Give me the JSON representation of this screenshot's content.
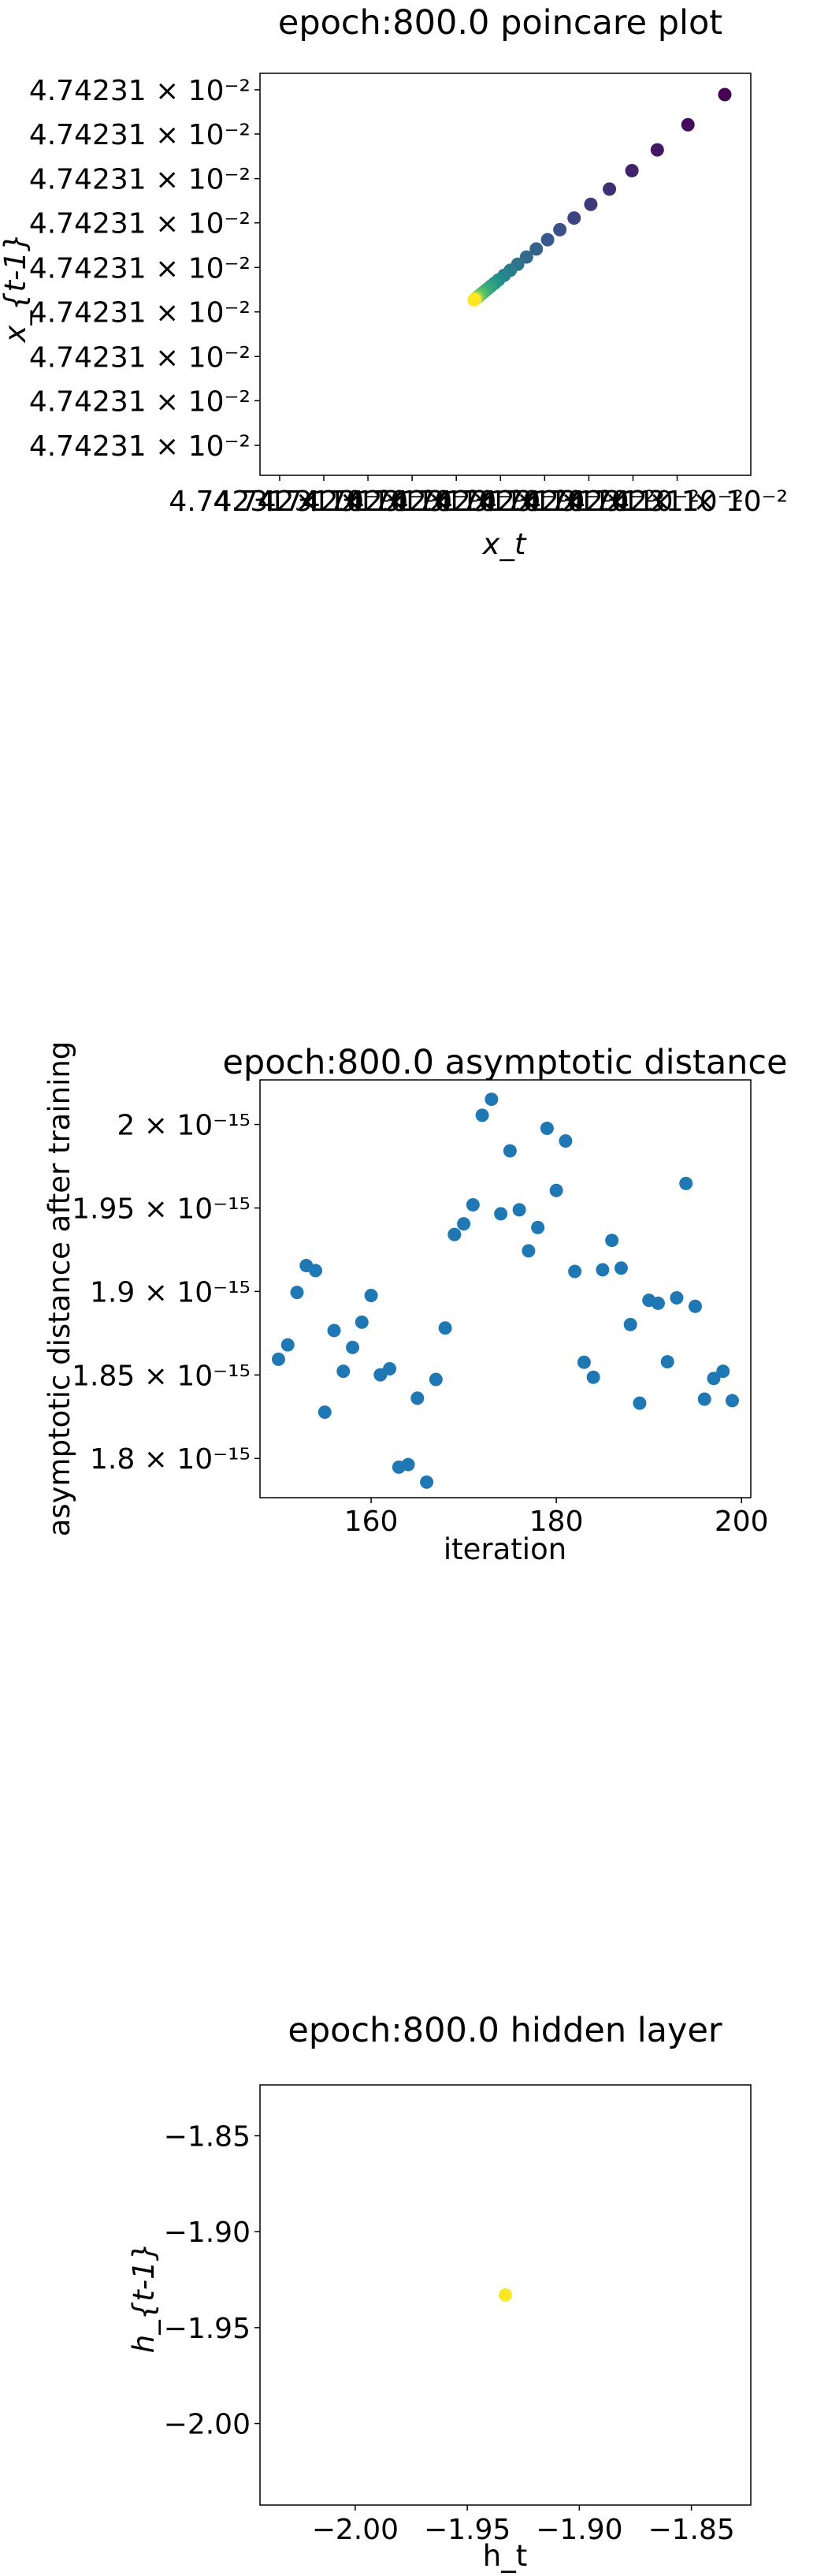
{
  "chart_data": [
    {
      "type": "scatter",
      "title": "epoch:800.0 poincare plot",
      "xlabel": "x_t",
      "ylabel": "x_{t-1}",
      "x_tick_labels": [
        "4.74231",
        "4.74231",
        "4.74231",
        "4.74231",
        "4.74231",
        "4.74231",
        "4.74231",
        "4.74231",
        "4.74231",
        "4.74231"
      ],
      "y_tick_labels": [
        "4.74231",
        "4.74231",
        "4.74231",
        "4.74231",
        "4.74231",
        "4.74231",
        "4.74231",
        "4.74231",
        "4.74231"
      ],
      "tick_exponent": "× 10⁻²",
      "colormap": [
        "#440154",
        "#3b528b",
        "#21918c",
        "#5ec962",
        "#fde725"
      ],
      "points": [
        [
          0.947,
          0.947
        ],
        [
          0.872,
          0.872
        ],
        [
          0.8095,
          0.8095
        ],
        [
          0.7578,
          0.7578
        ],
        [
          0.712,
          0.712
        ],
        [
          0.674,
          0.674
        ],
        [
          0.64,
          0.64
        ],
        [
          0.611,
          0.611
        ],
        [
          0.586,
          0.586
        ],
        [
          0.563,
          0.563
        ],
        [
          0.543,
          0.543
        ],
        [
          0.525,
          0.525
        ],
        [
          0.51,
          0.51
        ],
        [
          0.4975,
          0.4975
        ],
        [
          0.486,
          0.486
        ],
        [
          0.478,
          0.478
        ],
        [
          0.4705,
          0.4705
        ],
        [
          0.464,
          0.464
        ],
        [
          0.4585,
          0.4585
        ],
        [
          0.454,
          0.454
        ],
        [
          0.45,
          0.45
        ],
        [
          0.447,
          0.447
        ],
        [
          0.4445,
          0.4445
        ],
        [
          0.4425,
          0.4425
        ],
        [
          0.4408,
          0.4408
        ],
        [
          0.4395,
          0.4395
        ],
        [
          0.4385,
          0.4385
        ],
        [
          0.4377,
          0.4377
        ],
        [
          0.437,
          0.437
        ],
        [
          0.4365,
          0.4365
        ]
      ]
    },
    {
      "type": "scatter",
      "title": "epoch:800.0 asymptotic distance",
      "xlabel": "iteration",
      "ylabel": "asymptotic distance after training",
      "xlim": [
        148,
        201
      ],
      "ylim": [
        1.7765e-15,
        2.0267e-15
      ],
      "x_ticks": [
        160,
        180,
        200
      ],
      "y_ticks": [
        {
          "value": 1.8e-15,
          "mantissa": "1.8"
        },
        {
          "value": 1.85e-15,
          "mantissa": "1.85"
        },
        {
          "value": 1.9e-15,
          "mantissa": "1.9"
        },
        {
          "value": 1.95e-15,
          "mantissa": "1.95"
        },
        {
          "value": 2e-15,
          "mantissa": "2"
        }
      ],
      "tick_exponent": "× 10⁻¹⁵",
      "color": "#1f77b4",
      "points": [
        [
          150,
          1.8594e-15
        ],
        [
          151,
          1.868e-15
        ],
        [
          152,
          1.8994e-15
        ],
        [
          153,
          1.9155e-15
        ],
        [
          154,
          1.9125e-15
        ],
        [
          155,
          1.8277e-15
        ],
        [
          156,
          1.8766e-15
        ],
        [
          157,
          1.8522e-15
        ],
        [
          158,
          1.8665e-15
        ],
        [
          159,
          1.8816e-15
        ],
        [
          160,
          1.8976e-15
        ],
        [
          161,
          1.8501e-15
        ],
        [
          162,
          1.8537e-15
        ],
        [
          163,
          1.7948e-15
        ],
        [
          164,
          1.7963e-15
        ],
        [
          165,
          1.8361e-15
        ],
        [
          166,
          1.7858e-15
        ],
        [
          167,
          1.8473e-15
        ],
        [
          168,
          1.8781e-15
        ],
        [
          169,
          1.9341e-15
        ],
        [
          170,
          1.9405e-15
        ],
        [
          171,
          1.9519e-15
        ],
        [
          172,
          2.0055e-15
        ],
        [
          173,
          2.0151e-15
        ],
        [
          174,
          1.9465e-15
        ],
        [
          175,
          1.9842e-15
        ],
        [
          176,
          1.9489e-15
        ],
        [
          177,
          1.9243e-15
        ],
        [
          178,
          1.9383e-15
        ],
        [
          179,
          1.9977e-15
        ],
        [
          180,
          1.9605e-15
        ],
        [
          181,
          1.9901e-15
        ],
        [
          182,
          1.912e-15
        ],
        [
          183,
          1.8576e-15
        ],
        [
          184,
          1.8486e-15
        ],
        [
          185,
          1.913e-15
        ],
        [
          186,
          1.9306e-15
        ],
        [
          187,
          1.914e-15
        ],
        [
          188,
          1.8802e-15
        ],
        [
          189,
          1.8331e-15
        ],
        [
          190,
          1.8947e-15
        ],
        [
          191,
          1.8929e-15
        ],
        [
          192,
          1.8579e-15
        ],
        [
          193,
          1.8962e-15
        ],
        [
          194,
          1.9647e-15
        ],
        [
          195,
          1.8911e-15
        ],
        [
          196,
          1.8355e-15
        ],
        [
          197,
          1.8479e-15
        ],
        [
          198,
          1.8522e-15
        ],
        [
          199,
          1.8346e-15
        ]
      ]
    },
    {
      "type": "scatter",
      "title": "epoch:800.0 hidden layer",
      "xlabel": "h_t",
      "ylabel": "h_{t-1}",
      "xlim": [
        -2.0425,
        -1.8235
      ],
      "ylim": [
        -2.0425,
        -1.8235
      ],
      "x_ticks": [
        -2.0,
        -1.95,
        -1.9,
        -1.85
      ],
      "x_tick_labels": [
        "−2.00",
        "−1.95",
        "−1.90",
        "−1.85"
      ],
      "y_ticks": [
        -1.85,
        -1.9,
        -1.95,
        -2.0
      ],
      "y_tick_labels": [
        "−1.85",
        "−1.90",
        "−1.95",
        "−2.00"
      ],
      "color": "#fde725",
      "points": [
        [
          -1.933,
          -1.933
        ]
      ]
    }
  ]
}
